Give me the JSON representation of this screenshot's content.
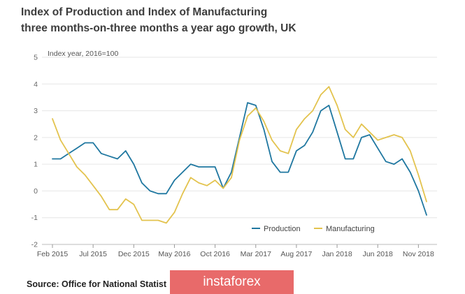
{
  "title_line1": "Index of Production and Index of Manufacturing",
  "title_line2": "three months-on-three months a year ago growth, UK",
  "source": "Source: Office for National Statist",
  "watermark": "instaforex",
  "chart_data": {
    "type": "line",
    "ylabel": "Index year, 2016=100",
    "ylim": [
      -2,
      5
    ],
    "yticks": [
      -2,
      -1,
      0,
      1,
      2,
      3,
      4,
      5
    ],
    "x_tick_labels": [
      "Feb 2015",
      "Jul 2015",
      "Dec 2015",
      "May 2016",
      "Oct 2016",
      "Mar 2017",
      "Aug 2017",
      "Jan 2018",
      "Jun 2018",
      "Nov 2018"
    ],
    "x_tick_every": 5,
    "grid": "horizontal",
    "legend_position": "bottom-right",
    "series": [
      {
        "name": "Production",
        "color": "#1f77a0",
        "values": [
          1.2,
          1.2,
          1.4,
          1.6,
          1.8,
          1.8,
          1.4,
          1.3,
          1.2,
          1.5,
          1.0,
          0.3,
          0.0,
          -0.1,
          -0.1,
          0.4,
          0.7,
          1.0,
          0.9,
          0.9,
          0.9,
          0.1,
          0.7,
          2.0,
          3.3,
          3.2,
          2.3,
          1.1,
          0.7,
          0.7,
          1.5,
          1.7,
          2.2,
          3.0,
          3.2,
          2.2,
          1.2,
          1.2,
          2.0,
          2.1,
          1.6,
          1.1,
          1.0,
          1.2,
          0.7,
          0.0,
          -0.9
        ]
      },
      {
        "name": "Manufacturing",
        "color": "#e3c34e",
        "values": [
          2.7,
          1.9,
          1.4,
          0.9,
          0.6,
          0.2,
          -0.2,
          -0.7,
          -0.7,
          -0.3,
          -0.5,
          -1.1,
          -1.1,
          -1.1,
          -1.2,
          -0.8,
          -0.1,
          0.5,
          0.3,
          0.2,
          0.4,
          0.1,
          0.5,
          1.9,
          2.8,
          3.1,
          2.6,
          1.9,
          1.5,
          1.4,
          2.3,
          2.7,
          3.0,
          3.6,
          3.9,
          3.2,
          2.3,
          2.0,
          2.5,
          2.2,
          1.9,
          2.0,
          2.1,
          2.0,
          1.5,
          0.6,
          -0.4
        ]
      }
    ]
  }
}
